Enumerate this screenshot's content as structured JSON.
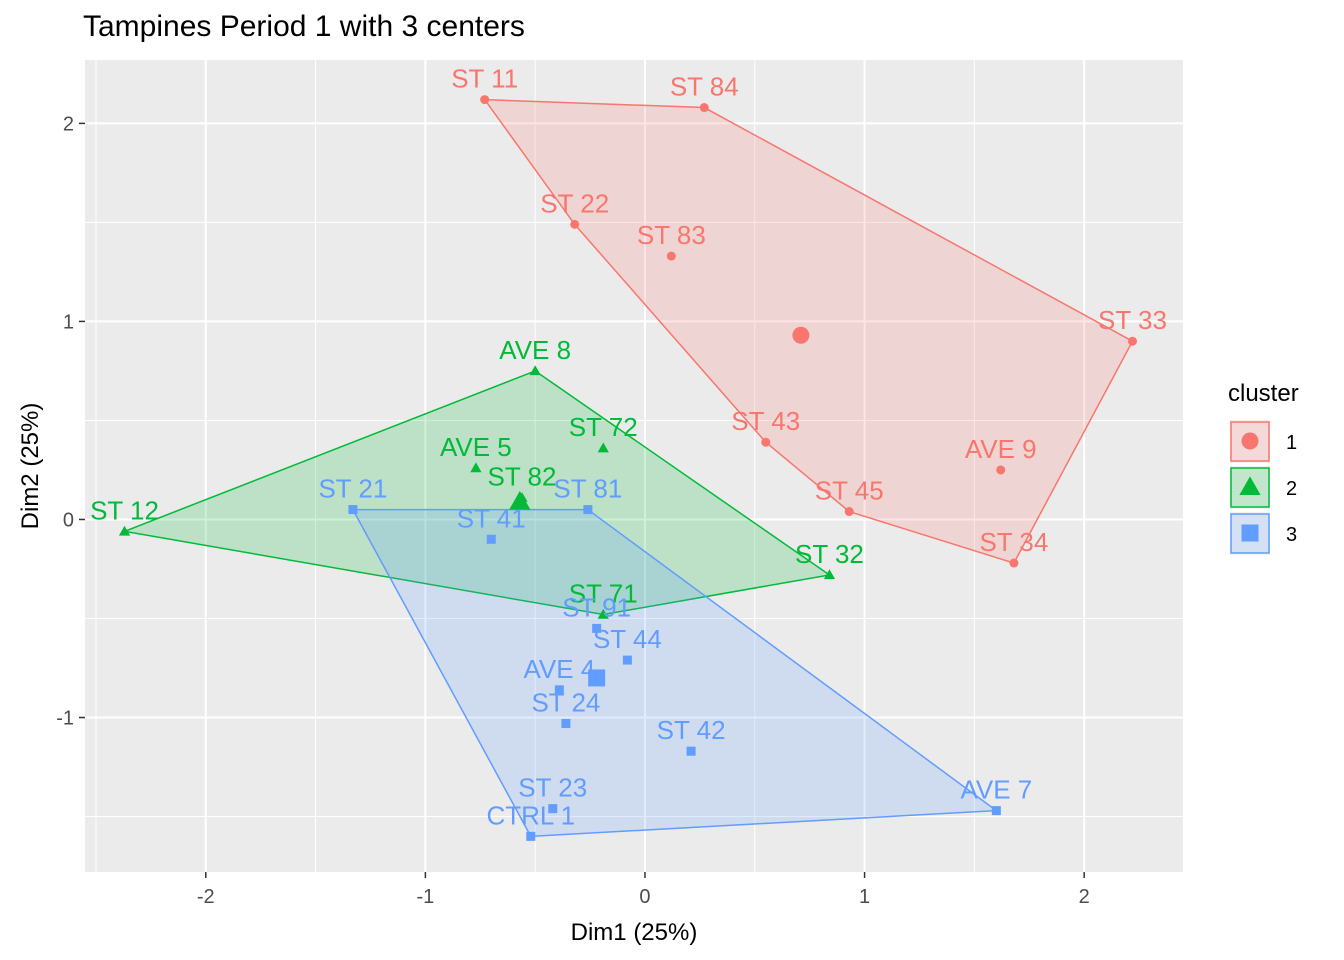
{
  "chart_data": {
    "type": "scatter",
    "title": "Tampines Period 1 with 3 centers",
    "xlabel": "Dim1 (25%)",
    "ylabel": "Dim2 (25%)",
    "xlim": [
      -2.55,
      2.45
    ],
    "ylim": [
      -1.78,
      2.32
    ],
    "xticks": [
      -2,
      -1,
      0,
      1,
      2
    ],
    "yticks": [
      -1,
      0,
      1,
      2
    ],
    "xtick_labels": [
      "-2",
      "-1",
      "0",
      "1",
      "2"
    ],
    "ytick_labels": [
      "-1",
      "0",
      "1",
      "2"
    ],
    "grid": true,
    "legend": {
      "title": "cluster",
      "placement": "right"
    },
    "series": [
      {
        "name": "1",
        "color": "#F8766D",
        "marker": "circle",
        "center": {
          "x": 0.71,
          "y": 0.93
        },
        "points": [
          {
            "label": "ST 11",
            "x": -0.73,
            "y": 2.12
          },
          {
            "label": "ST 84",
            "x": 0.27,
            "y": 2.08
          },
          {
            "label": "ST 22",
            "x": -0.32,
            "y": 1.49
          },
          {
            "label": "ST 83",
            "x": 0.12,
            "y": 1.33
          },
          {
            "label": "ST 33",
            "x": 2.22,
            "y": 0.9
          },
          {
            "label": "ST 43",
            "x": 0.55,
            "y": 0.39
          },
          {
            "label": "AVE 9",
            "x": 1.62,
            "y": 0.25
          },
          {
            "label": "ST 45",
            "x": 0.93,
            "y": 0.04
          },
          {
            "label": "ST 34",
            "x": 1.68,
            "y": -0.22
          }
        ],
        "hull": [
          "ST 11",
          "ST 84",
          "ST 33",
          "ST 34",
          "ST 45",
          "ST 43",
          "ST 22"
        ]
      },
      {
        "name": "2",
        "color": "#00BA38",
        "marker": "triangle",
        "center": {
          "x": -0.57,
          "y": 0.09
        },
        "points": [
          {
            "label": "AVE 8",
            "x": -0.5,
            "y": 0.75
          },
          {
            "label": "ST 72",
            "x": -0.19,
            "y": 0.36
          },
          {
            "label": "AVE 5",
            "x": -0.77,
            "y": 0.26
          },
          {
            "label": "ST 82",
            "x": -0.56,
            "y": 0.11
          },
          {
            "label": "ST 12",
            "x": -2.37,
            "y": -0.06
          },
          {
            "label": "ST 32",
            "x": 0.84,
            "y": -0.28
          },
          {
            "label": "ST 71",
            "x": -0.19,
            "y": -0.48
          }
        ],
        "hull": [
          "ST 12",
          "AVE 8",
          "ST 32",
          "ST 71"
        ]
      },
      {
        "name": "3",
        "color": "#619CFF",
        "marker": "square",
        "center": {
          "x": -0.22,
          "y": -0.8
        },
        "points": [
          {
            "label": "ST 21",
            "x": -1.33,
            "y": 0.05
          },
          {
            "label": "ST 81",
            "x": -0.26,
            "y": 0.05
          },
          {
            "label": "ST 41",
            "x": -0.7,
            "y": -0.1
          },
          {
            "label": "ST 91",
            "x": -0.22,
            "y": -0.55
          },
          {
            "label": "ST 44",
            "x": -0.08,
            "y": -0.71
          },
          {
            "label": "AVE 4",
            "x": -0.39,
            "y": -0.86
          },
          {
            "label": "ST 24",
            "x": -0.36,
            "y": -1.03
          },
          {
            "label": "ST 42",
            "x": 0.21,
            "y": -1.17
          },
          {
            "label": "ST 23",
            "x": -0.42,
            "y": -1.46
          },
          {
            "label": "AVE 7",
            "x": 1.6,
            "y": -1.47
          },
          {
            "label": "CTRL 1",
            "x": -0.52,
            "y": -1.6
          }
        ],
        "hull": [
          "ST 21",
          "ST 81",
          "AVE 7",
          "CTRL 1"
        ]
      }
    ]
  }
}
